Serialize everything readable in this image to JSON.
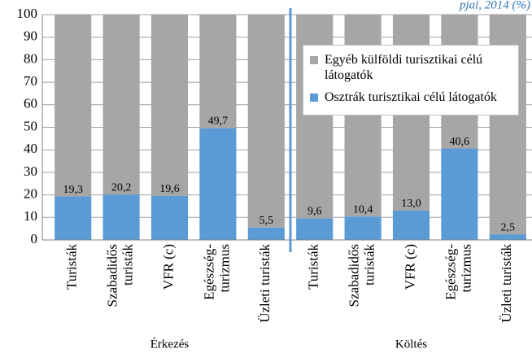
{
  "chart_data": {
    "type": "stacked_bar",
    "subtitle": "pjai, 2014 (%)",
    "categories": [
      [
        "Turisták"
      ],
      [
        "Szabadidős",
        "turisták"
      ],
      [
        "VFR (c)"
      ],
      [
        "Egészség-",
        "turizmus"
      ],
      [
        "Üzleti turisták"
      ],
      [
        "Turisták"
      ],
      [
        "Szabadidős",
        "turisták"
      ],
      [
        "VFR (c)"
      ],
      [
        "Egészség-",
        "turizmus"
      ],
      [
        "Üzleti turisták"
      ]
    ],
    "group_labels": [
      "Érkezés",
      "Költés"
    ],
    "series": [
      {
        "name": "Osztrák turisztikai célú látogatók",
        "color": "#5b9bd5",
        "values": [
          19.3,
          20.2,
          19.6,
          49.7,
          5.5,
          9.6,
          10.4,
          13.0,
          40.6,
          2.5
        ],
        "value_labels": [
          "19,3",
          "20,2",
          "19,6",
          "49,7",
          "5,5",
          "9,6",
          "10,4",
          "13,0",
          "40,6",
          "2,5"
        ]
      },
      {
        "name": "Egyéb külföldi turisztikai célú látogatók",
        "color": "#a6a6a6",
        "values": [
          80.7,
          79.8,
          80.4,
          50.3,
          94.5,
          90.4,
          89.6,
          87.0,
          59.4,
          97.5
        ]
      }
    ],
    "ylim": [
      0,
      100
    ],
    "yticks": [
      0,
      10,
      20,
      30,
      40,
      50,
      60,
      70,
      80,
      90,
      100
    ],
    "grid": true
  }
}
